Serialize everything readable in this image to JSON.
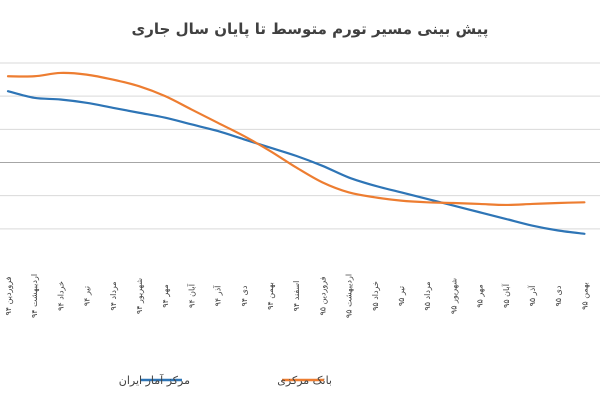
{
  "chart_data": {
    "type": "line",
    "title": "پیش بینی مسیر تورم متوسط تا پایان سال جاری",
    "xlabel": "",
    "ylabel": "",
    "categories": [
      "فروردین ۹۴",
      "اردیبهشت ۹۴",
      "خرداد ۹۴",
      "تیر ۹۴",
      "مرداد ۹۴",
      "شهریور ۹۴",
      "مهر ۹۴",
      "آبان ۹۴",
      "آذر ۹۴",
      "دی ۹۴",
      "بهمن ۹۴",
      "اسفند ۹۴",
      "فروردین ۹۵",
      "اردیبهشت ۹۵",
      "خرداد ۹۵",
      "تیر ۹۵",
      "مرداد ۹۵",
      "شهریور ۹۵",
      "مهر ۹۵",
      "آبان ۹۵",
      "آذر ۹۵",
      "دی ۹۵",
      "بهمن ۹۵"
    ],
    "ylim": [
      0,
      6
    ],
    "y_gridlines": [
      1,
      2,
      3,
      4,
      5,
      6
    ],
    "grid": true,
    "legend_position": "bottom",
    "series": [
      {
        "name": "مرکز آمار ایران",
        "color": "#2E75B6",
        "values": [
          5.15,
          4.95,
          4.9,
          4.8,
          4.65,
          4.5,
          4.35,
          4.15,
          3.95,
          3.7,
          3.45,
          3.2,
          2.9,
          2.55,
          2.3,
          2.1,
          1.9,
          1.7,
          1.5,
          1.3,
          1.1,
          0.95,
          0.85
        ]
      },
      {
        "name": "بانک مرکزی",
        "color": "#ED7D31",
        "values": [
          5.6,
          5.6,
          5.7,
          5.65,
          5.5,
          5.3,
          5.0,
          4.6,
          4.2,
          3.8,
          3.35,
          2.85,
          2.4,
          2.1,
          1.95,
          1.85,
          1.8,
          1.78,
          1.75,
          1.72,
          1.75,
          1.78,
          1.8
        ]
      }
    ]
  }
}
